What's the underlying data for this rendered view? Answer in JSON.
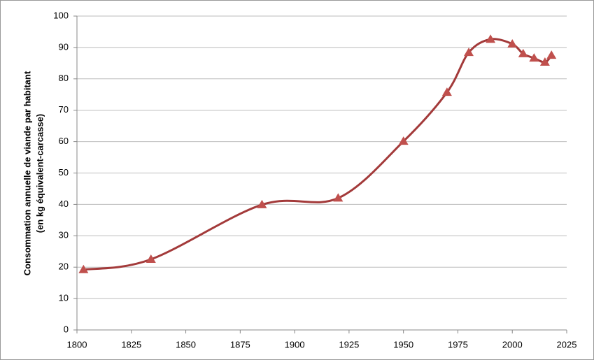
{
  "chart_data": {
    "type": "line",
    "y_label_lines": [
      "Consommation annuelle de viande par habitant",
      "(en kg équivalent-carcasse)"
    ],
    "x": [
      1803,
      1834,
      1885,
      1920,
      1950,
      1970,
      1980,
      1990,
      2000,
      2005,
      2010,
      2015,
      2018
    ],
    "series": [
      {
        "color": "#a33a3a",
        "marker_color": "#c0504d",
        "values": [
          19.2,
          22.5,
          39.9,
          42,
          60.1,
          75.7,
          88.4,
          92.6,
          91.1,
          88,
          86.6,
          85.3,
          87.5
        ]
      }
    ],
    "xlim": [
      1800,
      2025
    ],
    "xticks": [
      1800,
      1825,
      1850,
      1875,
      1900,
      1925,
      1950,
      1975,
      2000,
      2025
    ],
    "ylim": [
      0,
      100
    ],
    "yticks": [
      0,
      10,
      20,
      30,
      40,
      50,
      60,
      70,
      80,
      90,
      100
    ],
    "grid": true,
    "smooth": true
  }
}
